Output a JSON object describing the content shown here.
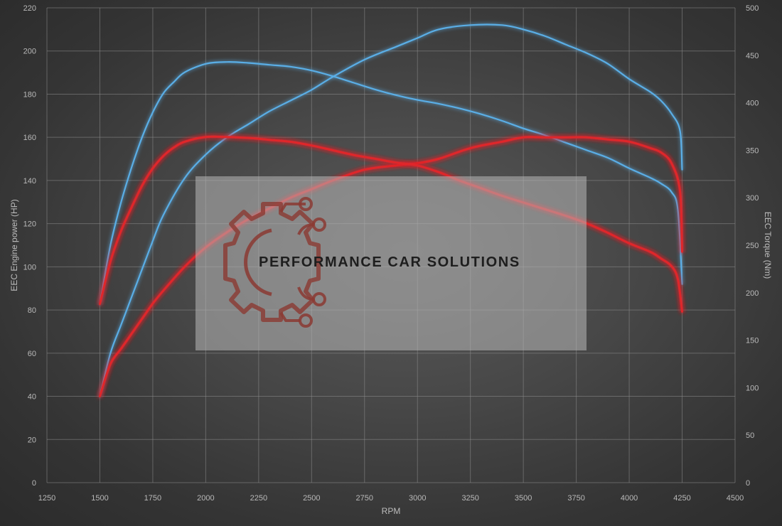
{
  "chart_data": {
    "type": "line",
    "xlabel": "RPM",
    "ylabel_left": "EEC Engine power (HP)",
    "ylabel_right": "EEC Torque (Nm)",
    "x_range": [
      1250,
      4500
    ],
    "x_ticks": [
      1250,
      1500,
      1750,
      2000,
      2250,
      2500,
      2750,
      3000,
      3250,
      3500,
      3750,
      4000,
      4250,
      4500
    ],
    "y_left_range": [
      0,
      220
    ],
    "y_left_ticks": [
      0,
      20,
      40,
      60,
      80,
      100,
      120,
      140,
      160,
      180,
      200,
      220
    ],
    "y_right_range": [
      0,
      500
    ],
    "y_right_ticks": [
      0,
      50,
      100,
      150,
      200,
      250,
      300,
      350,
      400,
      450,
      500
    ],
    "grid": true,
    "legend": "none",
    "colors": {
      "tuned": "#5aaee6",
      "stock": "#e0262c"
    },
    "series": [
      {
        "key": "tuned_power",
        "axis": "left",
        "color": "#5aaee6",
        "x": [
          1500,
          1550,
          1600,
          1650,
          1700,
          1750,
          1800,
          1900,
          2000,
          2100,
          2200,
          2300,
          2400,
          2500,
          2600,
          2750,
          2900,
          3000,
          3100,
          3250,
          3400,
          3500,
          3600,
          3700,
          3800,
          3900,
          4000,
          4100,
          4150,
          4200,
          4240,
          4250
        ],
        "y": [
          40,
          60,
          73,
          86,
          99,
          112,
          124,
          141,
          152,
          160,
          166,
          172,
          177,
          182,
          188,
          196,
          202,
          206,
          210,
          212,
          212,
          210,
          207,
          203,
          199,
          194,
          187,
          181,
          177,
          171,
          163,
          145
        ]
      },
      {
        "key": "tuned_torque",
        "axis": "right",
        "color": "#5aaee6",
        "x": [
          1500,
          1550,
          1600,
          1650,
          1700,
          1750,
          1800,
          1850,
          1900,
          2000,
          2100,
          2200,
          2300,
          2400,
          2500,
          2600,
          2700,
          2800,
          2900,
          3000,
          3100,
          3200,
          3300,
          3400,
          3500,
          3600,
          3700,
          3800,
          3900,
          4000,
          4100,
          4150,
          4200,
          4230,
          4250
        ],
        "y": [
          188,
          250,
          295,
          332,
          364,
          390,
          410,
          422,
          432,
          441,
          443,
          442,
          440,
          438,
          434,
          428,
          421,
          414,
          408,
          403,
          399,
          394,
          388,
          381,
          373,
          366,
          358,
          350,
          342,
          331,
          321,
          315,
          306,
          287,
          209
        ]
      },
      {
        "key": "stock_power",
        "axis": "left",
        "color": "#e0262c",
        "x": [
          1500,
          1550,
          1600,
          1650,
          1700,
          1750,
          1800,
          1900,
          2000,
          2100,
          2200,
          2300,
          2400,
          2500,
          2600,
          2750,
          2900,
          3000,
          3100,
          3250,
          3400,
          3500,
          3600,
          3700,
          3800,
          3900,
          4000,
          4100,
          4150,
          4200,
          4240,
          4250
        ],
        "y": [
          40,
          55,
          62,
          69,
          76,
          83,
          89,
          100,
          109,
          116,
          122,
          127,
          132,
          136,
          140,
          145,
          147,
          148,
          150,
          155,
          158,
          160,
          160,
          160,
          160,
          159,
          158,
          155,
          153,
          148,
          135,
          107
        ]
      },
      {
        "key": "stock_torque",
        "axis": "right",
        "color": "#e0262c",
        "x": [
          1500,
          1550,
          1600,
          1650,
          1700,
          1750,
          1800,
          1850,
          1900,
          2000,
          2100,
          2200,
          2300,
          2400,
          2500,
          2600,
          2700,
          2800,
          2900,
          3000,
          3100,
          3200,
          3300,
          3400,
          3500,
          3600,
          3700,
          3800,
          3900,
          4000,
          4100,
          4150,
          4200,
          4230,
          4250
        ],
        "y": [
          188,
          233,
          265,
          290,
          313,
          331,
          344,
          353,
          359,
          364,
          364,
          363,
          361,
          359,
          355,
          350,
          345,
          341,
          337,
          334,
          327,
          318,
          310,
          302,
          295,
          288,
          281,
          273,
          263,
          252,
          243,
          236,
          228,
          214,
          180
        ]
      }
    ]
  },
  "watermark": {
    "text": "PERFORMANCE CAR SOLUTIONS",
    "logo_icon": "gear-circuit-icon",
    "logo_color": "#8b3a32"
  }
}
